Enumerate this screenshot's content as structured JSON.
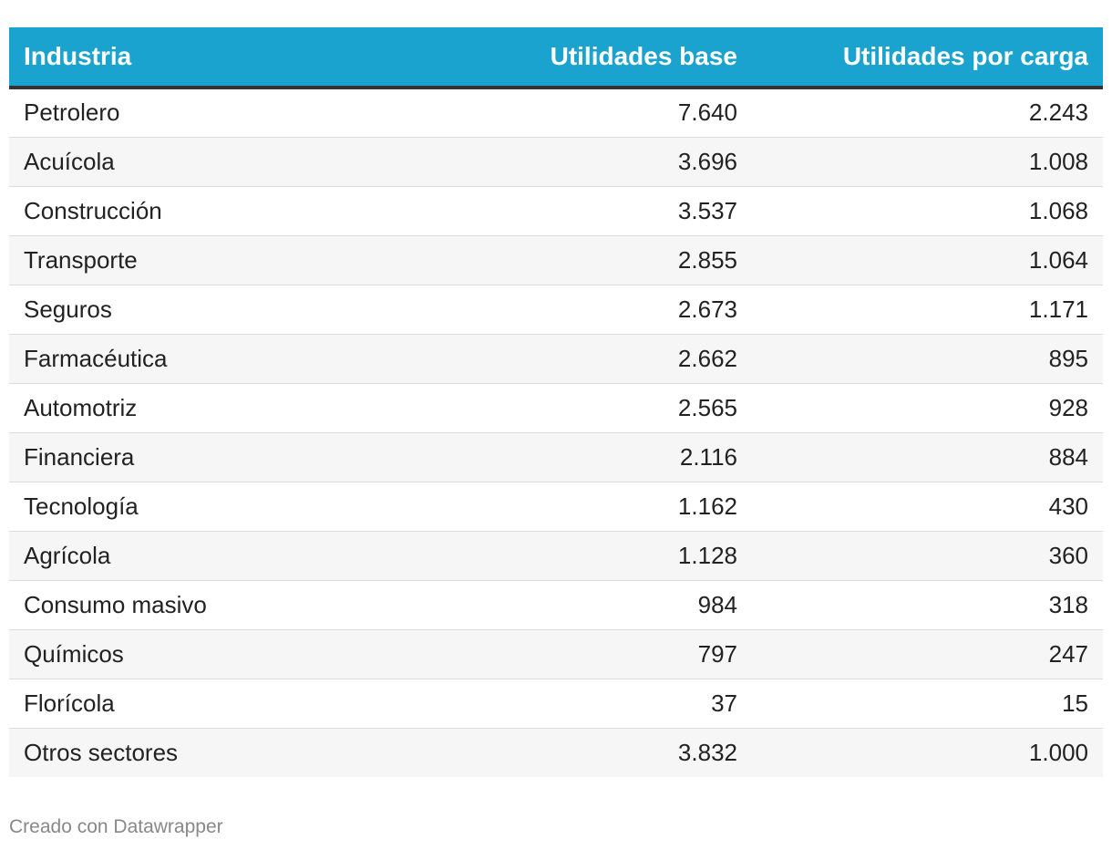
{
  "table": {
    "headers": [
      "Industria",
      "Utilidades base",
      "Utilidades por carga"
    ]
  },
  "chart_data": {
    "type": "table",
    "columns": [
      "Industria",
      "Utilidades base",
      "Utilidades por carga"
    ],
    "rows": [
      [
        "Petrolero",
        "7.640",
        "2.243"
      ],
      [
        "Acuícola",
        "3.696",
        "1.008"
      ],
      [
        "Construcción",
        "3.537",
        "1.068"
      ],
      [
        "Transporte",
        "2.855",
        "1.064"
      ],
      [
        "Seguros",
        "2.673",
        "1.171"
      ],
      [
        "Farmacéutica",
        "2.662",
        "895"
      ],
      [
        "Automotriz",
        "2.565",
        "928"
      ],
      [
        "Financiera",
        "2.116",
        "884"
      ],
      [
        "Tecnología",
        "1.162",
        "430"
      ],
      [
        "Agrícola",
        "1.128",
        "360"
      ],
      [
        "Consumo masivo",
        "984",
        "318"
      ],
      [
        "Químicos",
        "797",
        "247"
      ],
      [
        "Florícola",
        "37",
        "15"
      ],
      [
        "Otros sectores",
        "3.832",
        "1.000"
      ]
    ]
  },
  "colors": {
    "header_bg": "#1aa3cf",
    "header_text": "#ffffff",
    "header_rule": "#333333",
    "stripe": "#f6f6f6"
  },
  "footer": {
    "credit": "Creado con Datawrapper"
  }
}
